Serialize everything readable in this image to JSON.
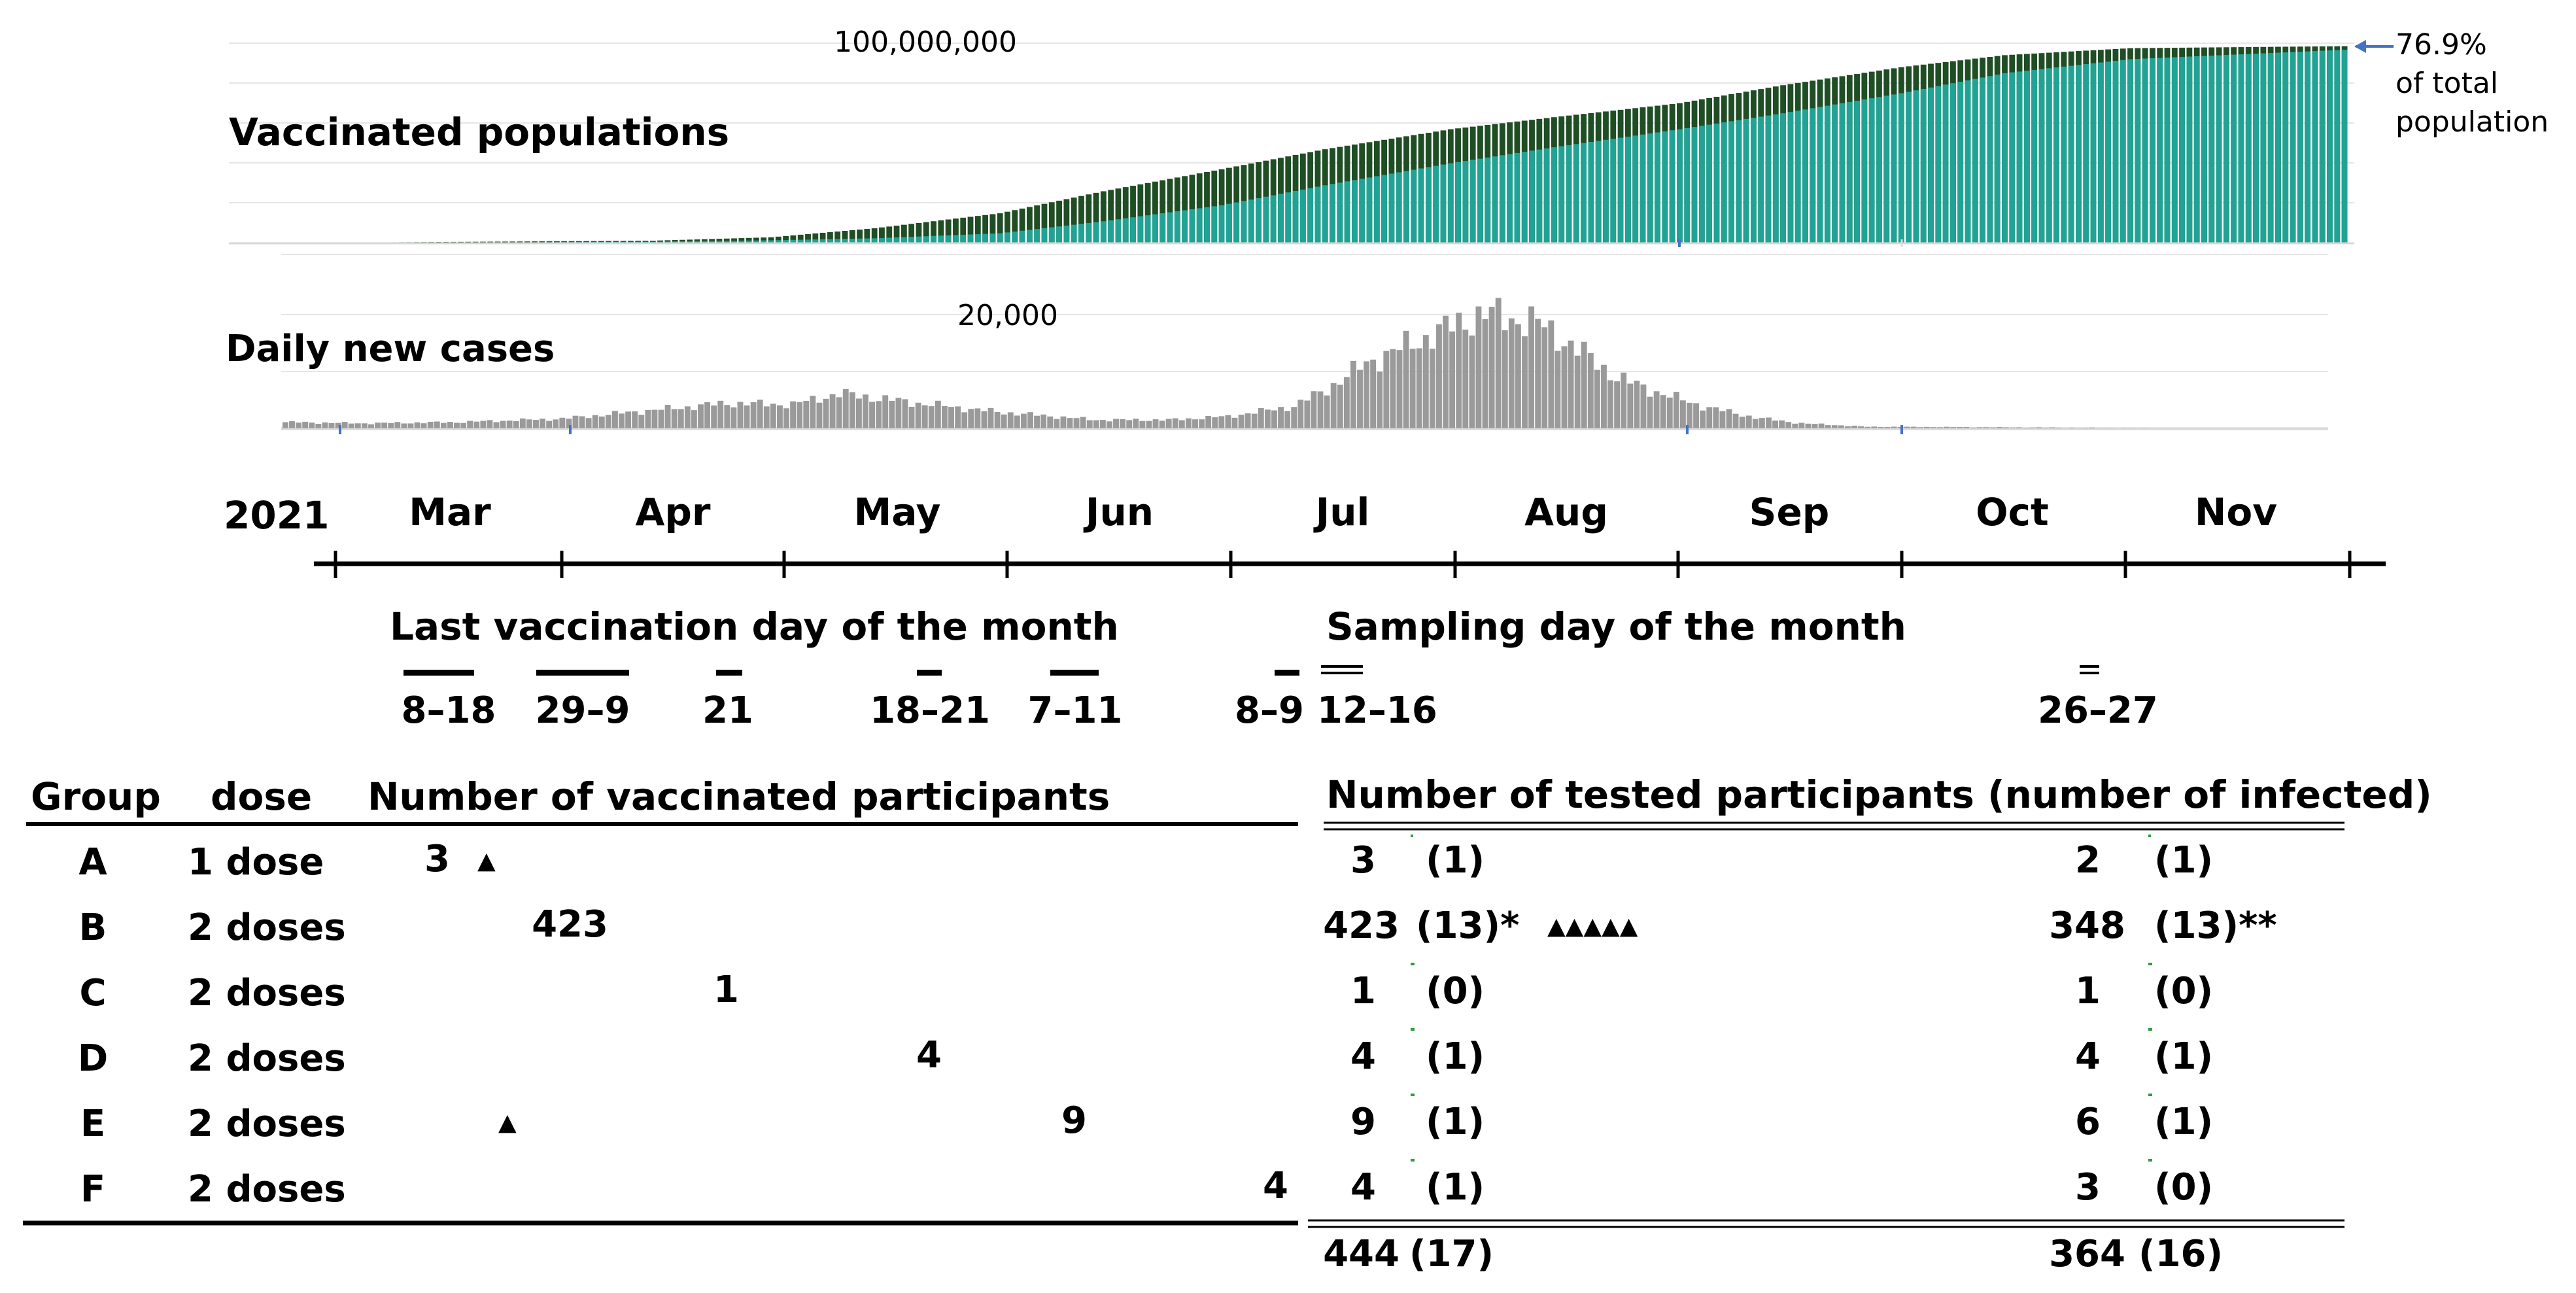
{
  "chart_data": [
    {
      "type": "area",
      "title": "Vaccinated populations",
      "y_tick_label": "100,000,000",
      "ylim": [
        0,
        100000000
      ],
      "grid": true,
      "series": [
        {
          "name": "",
          "color": "#1f4d24"
        },
        {
          "name": "",
          "color": "#20a394"
        }
      ],
      "end_annotation": [
        "76.9%",
        "of total",
        "population"
      ],
      "start_date": "2021-02-17",
      "end_date": "2021-11-30",
      "first_dose_points": [
        [
          "2021-02-17",
          0
        ],
        [
          "2021-03-15",
          600000
        ],
        [
          "2021-04-15",
          1300000
        ],
        [
          "2021-05-01",
          3000000
        ],
        [
          "2021-05-15",
          7500000
        ],
        [
          "2021-06-01",
          15000000
        ],
        [
          "2021-06-15",
          26000000
        ],
        [
          "2021-07-01",
          37000000
        ],
        [
          "2021-07-15",
          47000000
        ],
        [
          "2021-08-01",
          57000000
        ],
        [
          "2021-08-15",
          63000000
        ],
        [
          "2021-09-01",
          70000000
        ],
        [
          "2021-09-15",
          79000000
        ],
        [
          "2021-10-01",
          88000000
        ],
        [
          "2021-10-15",
          94000000
        ],
        [
          "2021-11-01",
          97500000
        ],
        [
          "2021-11-30",
          98500000
        ]
      ],
      "second_dose_points": [
        [
          "2021-02-17",
          0
        ],
        [
          "2021-03-15",
          200000
        ],
        [
          "2021-04-15",
          800000
        ],
        [
          "2021-05-01",
          1500000
        ],
        [
          "2021-05-15",
          2500000
        ],
        [
          "2021-06-01",
          5000000
        ],
        [
          "2021-06-15",
          11000000
        ],
        [
          "2021-07-01",
          19000000
        ],
        [
          "2021-07-15",
          29000000
        ],
        [
          "2021-08-01",
          40000000
        ],
        [
          "2021-08-15",
          48000000
        ],
        [
          "2021-09-01",
          57000000
        ],
        [
          "2021-09-15",
          65000000
        ],
        [
          "2021-10-01",
          75000000
        ],
        [
          "2021-10-15",
          85000000
        ],
        [
          "2021-11-01",
          92000000
        ],
        [
          "2021-11-30",
          96700000
        ]
      ]
    },
    {
      "type": "bar",
      "title": "Daily new cases",
      "y_tick_label": "20,000",
      "ylim": [
        0,
        20000
      ],
      "grid": true,
      "series": [
        {
          "name": "",
          "color": "#9a9a9a"
        }
      ],
      "start_date": "2021-02-17",
      "end_date": "2021-11-30",
      "points": [
        [
          "2021-02-17",
          1200
        ],
        [
          "2021-03-01",
          1000
        ],
        [
          "2021-03-15",
          1200
        ],
        [
          "2021-03-31",
          1800
        ],
        [
          "2021-04-10",
          2900
        ],
        [
          "2021-04-25",
          4500
        ],
        [
          "2021-05-05",
          4300
        ],
        [
          "2021-05-12",
          6200
        ],
        [
          "2021-05-25",
          4400
        ],
        [
          "2021-06-05",
          3000
        ],
        [
          "2021-06-20",
          1600
        ],
        [
          "2021-07-01",
          1600
        ],
        [
          "2021-07-10",
          2200
        ],
        [
          "2021-07-20",
          4000
        ],
        [
          "2021-07-25",
          7000
        ],
        [
          "2021-07-31",
          11500
        ],
        [
          "2021-08-05",
          14000
        ],
        [
          "2021-08-13",
          18000
        ],
        [
          "2021-08-18",
          20200
        ],
        [
          "2021-08-26",
          18500
        ],
        [
          "2021-09-01",
          14000
        ],
        [
          "2021-09-07",
          9000
        ],
        [
          "2021-09-13",
          6500
        ],
        [
          "2021-09-20",
          4000
        ],
        [
          "2021-09-28",
          2000
        ],
        [
          "2021-10-05",
          1000
        ],
        [
          "2021-10-15",
          400
        ],
        [
          "2021-11-30",
          150
        ]
      ]
    }
  ],
  "timeline": {
    "year": "2021",
    "months": [
      "Mar",
      "Apr",
      "May",
      "Jun",
      "Jul",
      "Aug",
      "Sep",
      "Oct",
      "Nov"
    ]
  },
  "vaccination_days": {
    "title": "Last vaccination day of the month",
    "labels": [
      "8–18",
      "29–9",
      "21",
      "18–21",
      "7–11",
      "8–9"
    ]
  },
  "sampling_days": {
    "title": "Sampling day of the month",
    "labels": [
      "12–16",
      "26–27"
    ]
  },
  "table": {
    "header_group": "Group",
    "header_dose": "dose",
    "header_vaccinated": "Number of vaccinated participants",
    "header_tested": "Number of tested participants (number of infected)",
    "rows": [
      {
        "group": "A",
        "dose": "1 dose",
        "vaccinated": "3",
        "t1": "3",
        "i1": "(1)",
        "t2": "2",
        "i2": "(1)"
      },
      {
        "group": "B",
        "dose": "2 doses",
        "vaccinated": "423",
        "t1": "423",
        "i1": "(13)*",
        "t2": "348",
        "i2": "(13)**"
      },
      {
        "group": "C",
        "dose": "2 doses",
        "vaccinated": "1",
        "t1": "1",
        "i1": "(0)",
        "t2": "1",
        "i2": "(0)"
      },
      {
        "group": "D",
        "dose": "2 doses",
        "vaccinated": "4",
        "t1": "4",
        "i1": "(1)",
        "t2": "4",
        "i2": "(1)"
      },
      {
        "group": "E",
        "dose": "2 doses",
        "vaccinated": "9",
        "t1": "9",
        "i1": "(1)",
        "t2": "6",
        "i2": "(1)"
      },
      {
        "group": "F",
        "dose": "2 doses",
        "vaccinated": "4",
        "t1": "4",
        "i1": "(1)",
        "t2": "3",
        "i2": "(0)"
      }
    ],
    "totals": {
      "t1": "444",
      "i1": "(17)",
      "t2": "364",
      "i2": "(16)"
    },
    "markers": [
      "▲",
      "▲▲▲▲▲",
      "▲"
    ]
  }
}
